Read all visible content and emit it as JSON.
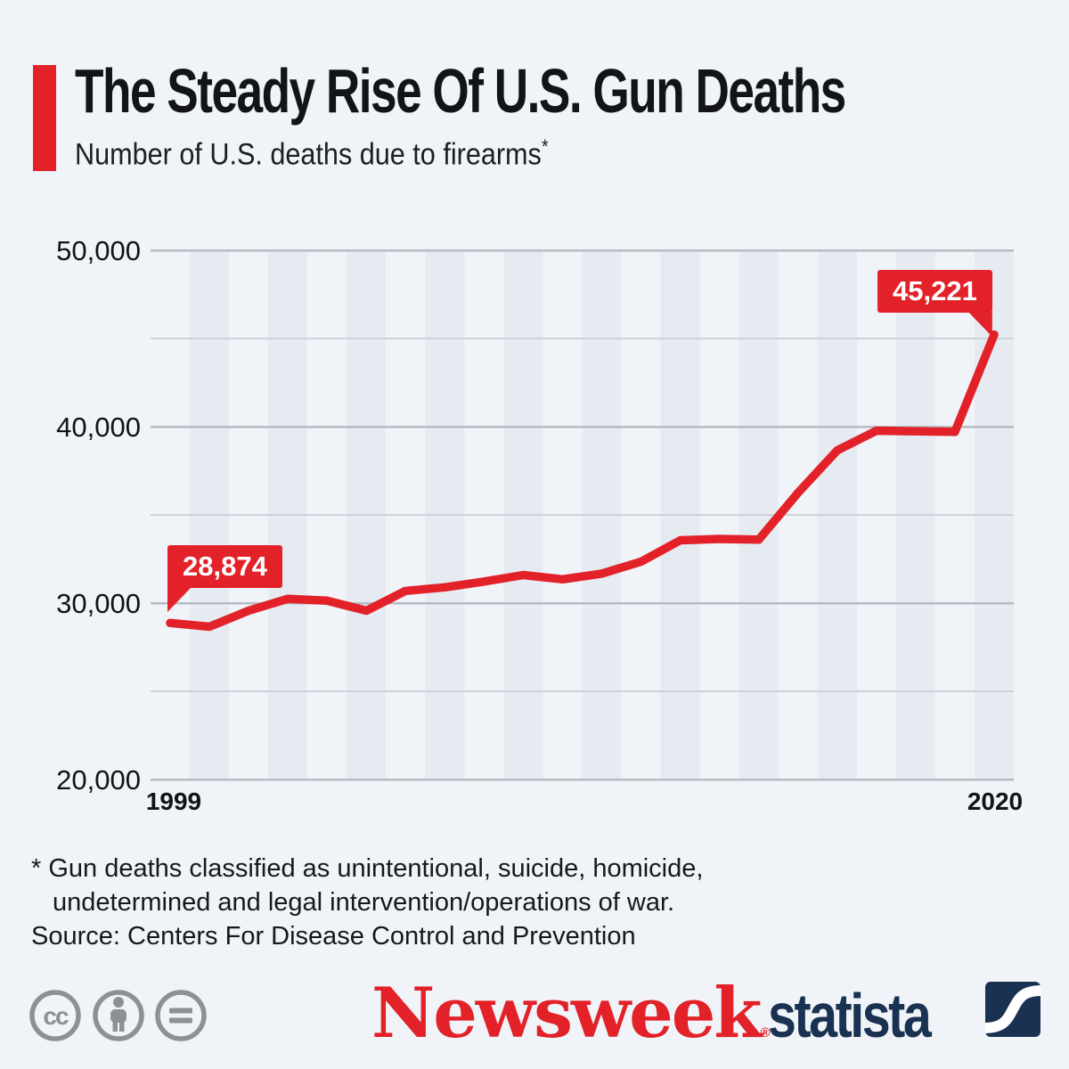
{
  "header": {
    "title": "The Steady Rise Of U.S. Gun Deaths",
    "subtitle": "Number of U.S. deaths due to firearms",
    "footnote_marker": "*"
  },
  "chart_data": {
    "type": "line",
    "title": "Number of U.S. deaths due to firearms",
    "xlabel": "",
    "ylabel": "",
    "x": [
      1999,
      2000,
      2001,
      2002,
      2003,
      2004,
      2005,
      2006,
      2007,
      2008,
      2009,
      2010,
      2011,
      2012,
      2013,
      2014,
      2015,
      2016,
      2017,
      2018,
      2019,
      2020
    ],
    "series": [
      {
        "name": "U.S. gun deaths",
        "values": [
          28874,
          28663,
          29573,
          30242,
          30136,
          29569,
          30694,
          30896,
          31224,
          31593,
          31347,
          31672,
          32351,
          33563,
          33636,
          33594,
          36252,
          38658,
          39773,
          39740,
          39707,
          45221
        ]
      }
    ],
    "ylim": [
      20000,
      50000
    ],
    "grid_major": [
      20000,
      30000,
      40000,
      50000
    ],
    "grid_minor": [
      25000,
      35000,
      45000
    ],
    "ytick_labels": [
      "50,000",
      "40,000",
      "30,000",
      "20,000"
    ],
    "xtick_labels": [
      "1999",
      "2020"
    ],
    "legend": "none",
    "grid": "horizontal gridlines, alternating vertical year bands",
    "line_color": "#e32129",
    "callouts": {
      "start": {
        "year": 1999,
        "value": 28874,
        "label": "28,874"
      },
      "end": {
        "year": 2020,
        "value": 45221,
        "label": "45,221"
      }
    }
  },
  "footer": {
    "footnote_line1": "* Gun deaths classified as unintentional, suicide, homicide,",
    "footnote_line2": "undetermined and legal intervention/operations of war.",
    "source": "Source: Centers For Disease Control and Prevention"
  },
  "branding": {
    "newsweek": "Newsweek",
    "newsweek_reg": "®",
    "statista": "statista",
    "license_icons": [
      "cc-icon",
      "attribution-icon",
      "no-derivatives-icon"
    ]
  },
  "colors": {
    "background": "#f0f4f8",
    "stripe": "#e6ebf2",
    "grid_major": "#b6bcc4",
    "grid_minor": "#cdd2da",
    "accent_red": "#e32129",
    "navy": "#1a3252",
    "icon_gray": "#8d9196",
    "text": "#15181c"
  }
}
